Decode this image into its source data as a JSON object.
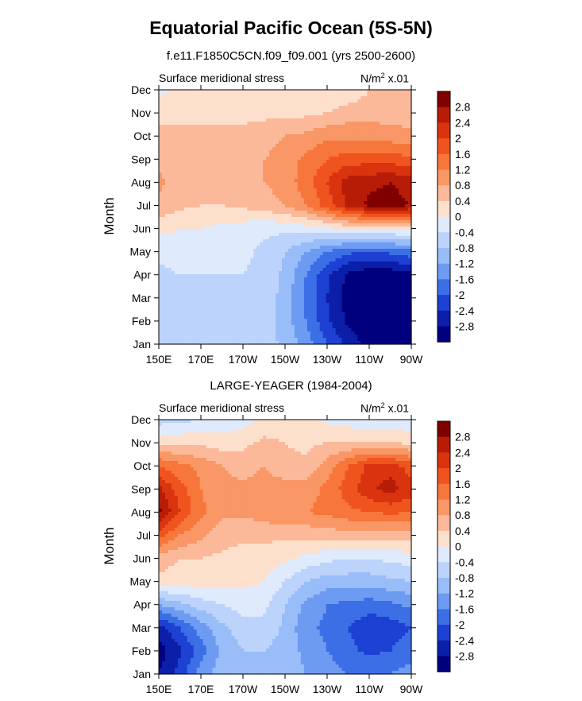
{
  "title": "Equatorial Pacific Ocean (5S-5N)",
  "colorbar": {
    "labels": [
      "2.8",
      "2.4",
      "2",
      "1.6",
      "1.2",
      "0.8",
      "0.4",
      "0",
      "-0.4",
      "-0.8",
      "-1.2",
      "-1.6",
      "-2",
      "-2.4",
      "-2.8"
    ],
    "colors": [
      "#800000",
      "#b71c06",
      "#d9340f",
      "#f0541e",
      "#f7763b",
      "#f99766",
      "#fbb99a",
      "#fde0cc",
      "#dfeafc",
      "#bcd3fb",
      "#98bdf8",
      "#6e9bf2",
      "#3c6ee6",
      "#1d41d2",
      "#0b1fa8",
      "#00007f"
    ]
  },
  "chart_data": [
    {
      "type": "heatmap",
      "subtitle": "f.e11.F1850C5CN.f09_f09.001 (yrs 2500-2600)",
      "label_left": "Surface meridional stress",
      "units": "N/m",
      "units_sup": "2",
      "units_scale": " x.01",
      "ylabel": "Month",
      "x_ticks": [
        "150E",
        "170E",
        "170W",
        "150W",
        "130W",
        "110W",
        "90W"
      ],
      "y_ticks": [
        "Jan",
        "Feb",
        "Mar",
        "Apr",
        "May",
        "Jun",
        "Jul",
        "Aug",
        "Sep",
        "Oct",
        "Nov",
        "Dec"
      ],
      "values": [
        [
          -0.6,
          -0.5,
          -0.5,
          -0.5,
          -0.5,
          -0.6,
          -0.9,
          -1.4,
          -2.0,
          -2.5,
          -3.0,
          -3.0,
          -2.8
        ],
        [
          -0.6,
          -0.4,
          -0.4,
          -0.4,
          -0.4,
          -0.6,
          -1.0,
          -1.6,
          -2.3,
          -2.9,
          -3.1,
          -3.1,
          -2.9
        ],
        [
          -0.7,
          -0.4,
          -0.4,
          -0.4,
          -0.4,
          -0.5,
          -1.0,
          -1.7,
          -2.4,
          -3.0,
          -3.2,
          -3.2,
          -3.0
        ],
        [
          -0.5,
          -0.4,
          -0.4,
          -0.4,
          -0.4,
          -0.5,
          -0.9,
          -1.6,
          -2.3,
          -2.9,
          -3.1,
          -3.1,
          -2.9
        ],
        [
          -0.3,
          -0.2,
          -0.2,
          -0.2,
          -0.3,
          -0.5,
          -0.8,
          -1.2,
          -1.6,
          -1.9,
          -2.0,
          -1.9,
          -1.7
        ],
        [
          0.1,
          0.0,
          0.0,
          -0.1,
          -0.2,
          -0.3,
          -0.3,
          -0.2,
          -0.1,
          0.1,
          0.1,
          0.1,
          0.1
        ],
        [
          0.7,
          0.5,
          0.4,
          0.4,
          0.5,
          0.6,
          0.8,
          1.2,
          1.8,
          2.5,
          2.9,
          3.0,
          2.8
        ],
        [
          0.9,
          0.6,
          0.6,
          0.6,
          0.7,
          0.8,
          1.0,
          1.4,
          2.0,
          2.6,
          2.7,
          2.8,
          2.6
        ],
        [
          0.7,
          0.6,
          0.6,
          0.6,
          0.7,
          0.8,
          1.0,
          1.3,
          1.6,
          1.8,
          1.8,
          1.8,
          1.7
        ],
        [
          0.5,
          0.5,
          0.5,
          0.5,
          0.5,
          0.6,
          0.8,
          0.9,
          1.1,
          1.1,
          1.1,
          1.0,
          0.9
        ],
        [
          0.3,
          0.3,
          0.3,
          0.3,
          0.3,
          0.3,
          0.3,
          0.3,
          0.4,
          0.6,
          0.6,
          0.6,
          0.6
        ],
        [
          -0.1,
          0.1,
          0.2,
          0.2,
          0.2,
          0.2,
          0.1,
          0.0,
          0.0,
          0.1,
          0.4,
          0.5,
          0.5
        ]
      ]
    },
    {
      "type": "heatmap",
      "subtitle": "LARGE-YEAGER (1984-2004)",
      "label_left": "Surface meridional stress",
      "units": "N/m",
      "units_sup": "2",
      "units_scale": " x.01",
      "ylabel": "Month",
      "x_ticks": [
        "150E",
        "170E",
        "170W",
        "150W",
        "130W",
        "110W",
        "90W"
      ],
      "y_ticks": [
        "Jan",
        "Feb",
        "Mar",
        "Apr",
        "May",
        "Jun",
        "Jul",
        "Aug",
        "Sep",
        "Oct",
        "Nov",
        "Dec"
      ],
      "values": [
        [
          -2.8,
          -2.2,
          -1.4,
          -1.0,
          -0.8,
          -0.8,
          -1.0,
          -1.2,
          -1.4,
          -1.6,
          -1.6,
          -1.6,
          -1.4
        ],
        [
          -3.0,
          -2.5,
          -1.8,
          -1.1,
          -0.8,
          -0.8,
          -1.0,
          -1.3,
          -1.6,
          -1.9,
          -2.1,
          -2.0,
          -1.8
        ],
        [
          -2.6,
          -2.0,
          -1.4,
          -0.9,
          -0.6,
          -0.5,
          -0.9,
          -1.5,
          -1.7,
          -2.0,
          -2.3,
          -2.2,
          -2.0
        ],
        [
          -1.2,
          -0.9,
          -0.6,
          -0.4,
          -0.2,
          -0.3,
          -0.8,
          -1.3,
          -1.6,
          -1.7,
          -1.8,
          -1.7,
          -1.5
        ],
        [
          0.3,
          0.2,
          0.2,
          0.2,
          0.1,
          0.0,
          -0.4,
          -0.8,
          -1.0,
          -1.0,
          -1.0,
          -0.9,
          -0.8
        ],
        [
          0.6,
          0.4,
          0.4,
          0.3,
          0.2,
          0.2,
          0.1,
          -0.1,
          -0.3,
          -0.4,
          -0.4,
          -0.3,
          -0.2
        ],
        [
          1.8,
          1.2,
          0.9,
          0.6,
          0.5,
          0.5,
          0.5,
          0.5,
          0.6,
          0.6,
          0.6,
          0.6,
          0.6
        ],
        [
          2.9,
          2.0,
          1.3,
          0.9,
          0.9,
          1.0,
          1.2,
          1.2,
          1.3,
          1.5,
          1.6,
          1.7,
          1.6
        ],
        [
          2.5,
          1.8,
          1.2,
          1.0,
          0.9,
          1.0,
          1.0,
          1.0,
          1.3,
          1.8,
          2.3,
          2.6,
          2.2
        ],
        [
          1.6,
          1.3,
          1.1,
          0.8,
          0.6,
          0.8,
          0.5,
          0.5,
          1.0,
          1.6,
          2.1,
          2.2,
          1.8
        ],
        [
          0.3,
          0.3,
          0.3,
          0.2,
          0.3,
          0.5,
          0.4,
          0.3,
          0.4,
          0.4,
          0.4,
          0.4,
          0.3
        ],
        [
          -0.6,
          -0.5,
          -0.4,
          -0.3,
          -0.2,
          0.1,
          0.2,
          0.2,
          -0.1,
          -0.2,
          -0.3,
          -0.3,
          -0.3
        ]
      ]
    }
  ]
}
